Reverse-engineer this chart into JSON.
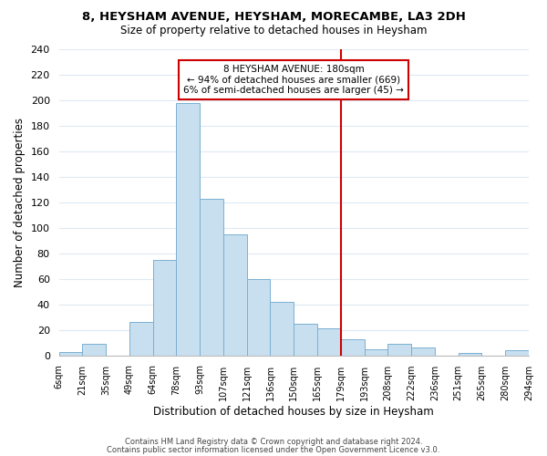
{
  "title": "8, HEYSHAM AVENUE, HEYSHAM, MORECAMBE, LA3 2DH",
  "subtitle": "Size of property relative to detached houses in Heysham",
  "xlabel": "Distribution of detached houses by size in Heysham",
  "ylabel": "Number of detached properties",
  "bar_color": "#c8dff0",
  "bar_edge_color": "#7ab0d0",
  "grid_color": "#ddeaf5",
  "tick_labels": [
    "6sqm",
    "21sqm",
    "35sqm",
    "49sqm",
    "64sqm",
    "78sqm",
    "93sqm",
    "107sqm",
    "121sqm",
    "136sqm",
    "150sqm",
    "165sqm",
    "179sqm",
    "193sqm",
    "208sqm",
    "222sqm",
    "236sqm",
    "251sqm",
    "265sqm",
    "280sqm",
    "294sqm"
  ],
  "bar_heights": [
    3,
    9,
    0,
    26,
    75,
    198,
    123,
    95,
    60,
    42,
    25,
    21,
    13,
    5,
    9,
    6,
    0,
    2,
    0,
    4
  ],
  "ylim": [
    0,
    240
  ],
  "yticks": [
    0,
    20,
    40,
    60,
    80,
    100,
    120,
    140,
    160,
    180,
    200,
    220,
    240
  ],
  "property_line_idx": 12,
  "annotation_title": "8 HEYSHAM AVENUE: 180sqm",
  "annotation_line1": "← 94% of detached houses are smaller (669)",
  "annotation_line2": "6% of semi-detached houses are larger (45) →",
  "footer1": "Contains HM Land Registry data © Crown copyright and database right 2024.",
  "footer2": "Contains public sector information licensed under the Open Government Licence v3.0.",
  "background_color": "#ffffff",
  "annotation_box_color": "#ffffff",
  "annotation_box_edge": "#cc0000"
}
